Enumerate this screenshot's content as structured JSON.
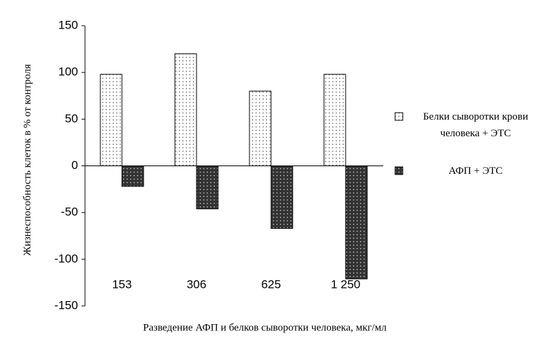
{
  "chart_data": {
    "type": "bar",
    "y_label": "Жизнеспособность клеток в % от контроля",
    "x_label": "Разведение  АФП и белков сыворотки человека, мкг/мл",
    "categories": [
      "153",
      "306",
      "625",
      "1 250"
    ],
    "series": [
      {
        "name": "Белки сыворотки крови человека + ЭТС",
        "color": "#ffffff",
        "values": [
          98,
          120,
          80,
          98
        ]
      },
      {
        "name": "АФП + ЭТС",
        "color": "#333333",
        "values": [
          -22,
          -46,
          -67,
          -121
        ]
      }
    ],
    "ylim": [
      -150,
      150
    ],
    "yticks": [
      150,
      100,
      50,
      0,
      -50,
      -100,
      -150
    ],
    "grid": false
  }
}
